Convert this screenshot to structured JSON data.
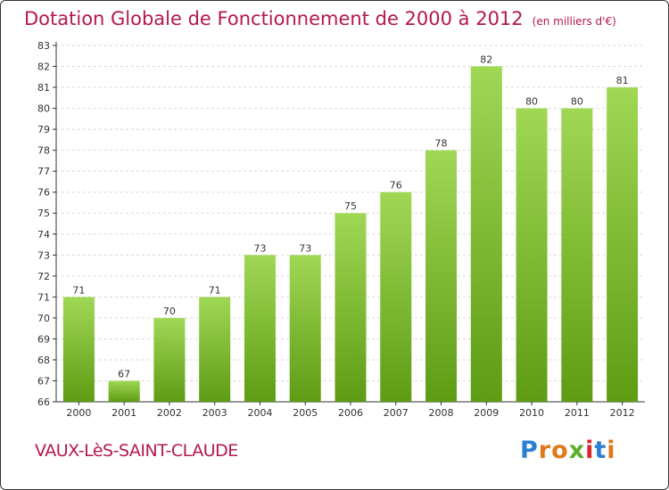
{
  "title": "Dotation Globale de Fonctionnement de 2000 à 2012",
  "unit": "(en milliers d'€)",
  "place": "VAUX-LèS-SAINT-CLAUDE",
  "brand": {
    "letters": [
      "P",
      "r",
      "o",
      "x",
      "i",
      "t",
      "i"
    ],
    "colors": [
      "#2a7fd4",
      "#e0781c",
      "#e0781c",
      "#5aae2b",
      "#d9272e",
      "#2a7fd4",
      "#e0781c"
    ]
  },
  "colors": {
    "bar_top": "#a0d855",
    "bar_bottom": "#5e9c14",
    "grid": "#d8d8d8",
    "axis": "#333333",
    "title": "#b5174f"
  },
  "chart_data": {
    "type": "bar",
    "categories": [
      "2000",
      "2001",
      "2002",
      "2003",
      "2004",
      "2005",
      "2006",
      "2007",
      "2008",
      "2009",
      "2010",
      "2011",
      "2012"
    ],
    "values": [
      71,
      67,
      70,
      71,
      73,
      73,
      75,
      76,
      78,
      82,
      80,
      80,
      81
    ],
    "yticks": [
      66,
      67,
      68,
      69,
      70,
      71,
      72,
      73,
      74,
      75,
      76,
      77,
      78,
      79,
      80,
      81,
      82,
      83
    ],
    "ylim": [
      66,
      83
    ],
    "grid": true,
    "data_labels": true
  }
}
